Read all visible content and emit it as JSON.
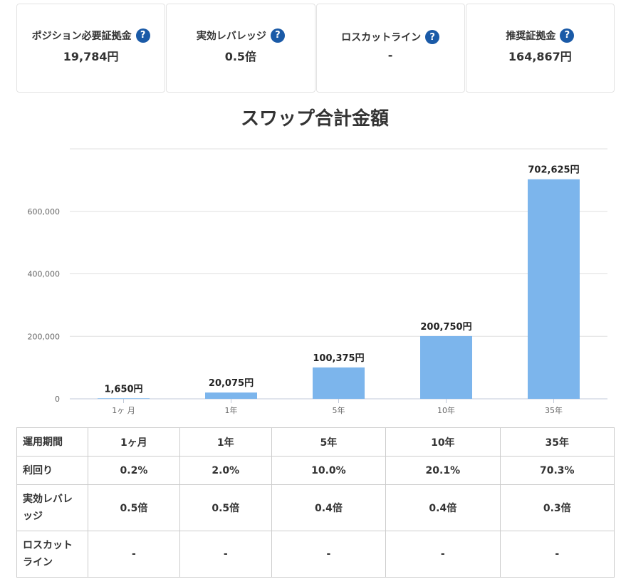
{
  "cards": [
    {
      "label": "ポジション必要証拠金",
      "value": "19,784円"
    },
    {
      "label": "実効レバレッジ",
      "value": "0.5倍"
    },
    {
      "label": "ロスカットライン",
      "value": "-"
    },
    {
      "label": "推奨証拠金",
      "value": "164,867円"
    }
  ],
  "help_icon": "?",
  "chart_data": {
    "type": "bar",
    "title": "スワップ合計金額",
    "categories": [
      "1ヶ 月",
      "1年",
      "5年",
      "10年",
      "35年"
    ],
    "values": [
      1650,
      20075,
      100375,
      200750,
      702625
    ],
    "data_labels": [
      "1,650円",
      "20,075円",
      "100,375円",
      "200,750円",
      "702,625円"
    ],
    "y_ticks": [
      "0",
      "200,000",
      "400,000",
      "600,000"
    ],
    "ylim": [
      0,
      800000
    ],
    "bar_color": "#7cb5ec",
    "grid": true
  },
  "table": {
    "columns": [
      "運用期間",
      "1ヶ月",
      "1年",
      "5年",
      "10年",
      "35年"
    ],
    "rows": [
      {
        "label": "利回り",
        "values": [
          "0.2%",
          "2.0%",
          "10.0%",
          "20.1%",
          "70.3%"
        ]
      },
      {
        "label": "実効レバレッジ",
        "values": [
          "0.5倍",
          "0.5倍",
          "0.4倍",
          "0.4倍",
          "0.3倍"
        ]
      },
      {
        "label": "ロスカットライン",
        "values": [
          "-",
          "-",
          "-",
          "-",
          "-"
        ]
      }
    ]
  }
}
